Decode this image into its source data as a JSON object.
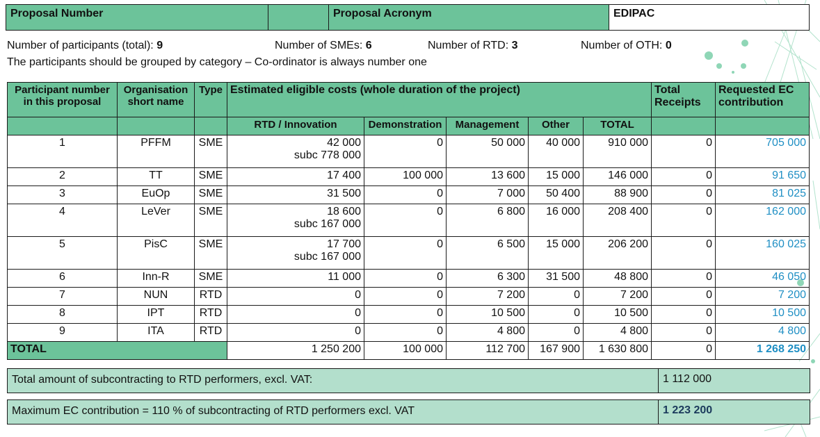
{
  "header": {
    "proposal_number_label": "Proposal Number",
    "proposal_acronym_label": "Proposal Acronym",
    "acronym_value": "EDIPAC"
  },
  "info": {
    "participants_label": "Number of participants (total):",
    "participants_value": "9",
    "smes_label": "Number of SMEs:",
    "smes_value": "6",
    "rtd_label": "Number of RTD:",
    "rtd_value": "3",
    "oth_label": "Number of OTH:",
    "oth_value": "0",
    "grouping_note": "The participants should be grouped by category – Co-ordinator is always number one"
  },
  "table": {
    "headers": {
      "participant_number": "Participant number in this proposal",
      "org_short_name": "Organisation short name",
      "type": "Type",
      "estimated_costs": "Estimated eligible costs (whole duration of the project)",
      "total_receipts": "Total Receipts",
      "requested_ec": "Requested EC contribution",
      "rtd": "RTD / Innovation",
      "demonstration": "Demonstration",
      "management": "Management",
      "other": "Other",
      "total": "TOTAL"
    },
    "rows": [
      {
        "num": "1",
        "org": "PFFM",
        "type": "SME",
        "rtd": "42 000",
        "rtd_sub": "subc 778 000",
        "demo": "0",
        "mgmt": "50 000",
        "other": "40 000",
        "total": "910 000",
        "receipts": "0",
        "ec": "705 000"
      },
      {
        "num": "2",
        "org": "TT",
        "type": "SME",
        "rtd": "17 400",
        "rtd_sub": "",
        "demo": "100 000",
        "mgmt": "13 600",
        "other": "15 000",
        "total": "146 000",
        "receipts": "0",
        "ec": "91 650"
      },
      {
        "num": "3",
        "org": "EuOp",
        "type": "SME",
        "rtd": "31 500",
        "rtd_sub": "",
        "demo": "0",
        "mgmt": "7 000",
        "other": "50 400",
        "total": "88 900",
        "receipts": "0",
        "ec": "81 025"
      },
      {
        "num": "4",
        "org": "LeVer",
        "type": "SME",
        "rtd": "18 600",
        "rtd_sub": "subc 167 000",
        "demo": "0",
        "mgmt": "6 800",
        "other": "16 000",
        "total": "208 400",
        "receipts": "0",
        "ec": "162 000"
      },
      {
        "num": "5",
        "org": "PisC",
        "type": "SME",
        "rtd": "17 700",
        "rtd_sub": "subc 167 000",
        "demo": "0",
        "mgmt": "6 500",
        "other": "15 000",
        "total": "206 200",
        "receipts": "0",
        "ec": "160 025"
      },
      {
        "num": "6",
        "org": "Inn-R",
        "type": "SME",
        "rtd": "11 000",
        "rtd_sub": "",
        "demo": "0",
        "mgmt": "6 300",
        "other": "31 500",
        "total": "48 800",
        "receipts": "0",
        "ec": "46 050"
      },
      {
        "num": "7",
        "org": "NUN",
        "type": "RTD",
        "rtd": "0",
        "rtd_sub": "",
        "demo": "0",
        "mgmt": "7 200",
        "other": "0",
        "total": "7 200",
        "receipts": "0",
        "ec": "7 200"
      },
      {
        "num": "8",
        "org": "IPT",
        "type": "RTD",
        "rtd": "0",
        "rtd_sub": "",
        "demo": "0",
        "mgmt": "10 500",
        "other": "0",
        "total": "10 500",
        "receipts": "0",
        "ec": "10 500"
      },
      {
        "num": "9",
        "org": "ITA",
        "type": "RTD",
        "rtd": "0",
        "rtd_sub": "",
        "demo": "0",
        "mgmt": "4 800",
        "other": "0",
        "total": "4 800",
        "receipts": "0",
        "ec": "4 800"
      }
    ],
    "total_row": {
      "label": "TOTAL",
      "rtd": "1 250 200",
      "demo": "100 000",
      "mgmt": "112 700",
      "other": "167 900",
      "total": "1 630 800",
      "receipts": "0",
      "ec": "1 268 250"
    }
  },
  "footer": {
    "subcontracting_label": "Total amount of subcontracting to RTD performers, excl. VAT:",
    "subcontracting_value": "1 112 000",
    "max_ec_label": "Maximum EC contribution = 110 % of subcontracting of RTD performers excl. VAT",
    "max_ec_value": "1 223 200"
  },
  "colors": {
    "header_green": "#6cc39a",
    "footer_green": "#b3dfcc",
    "ec_blue": "#1f8fc4"
  }
}
